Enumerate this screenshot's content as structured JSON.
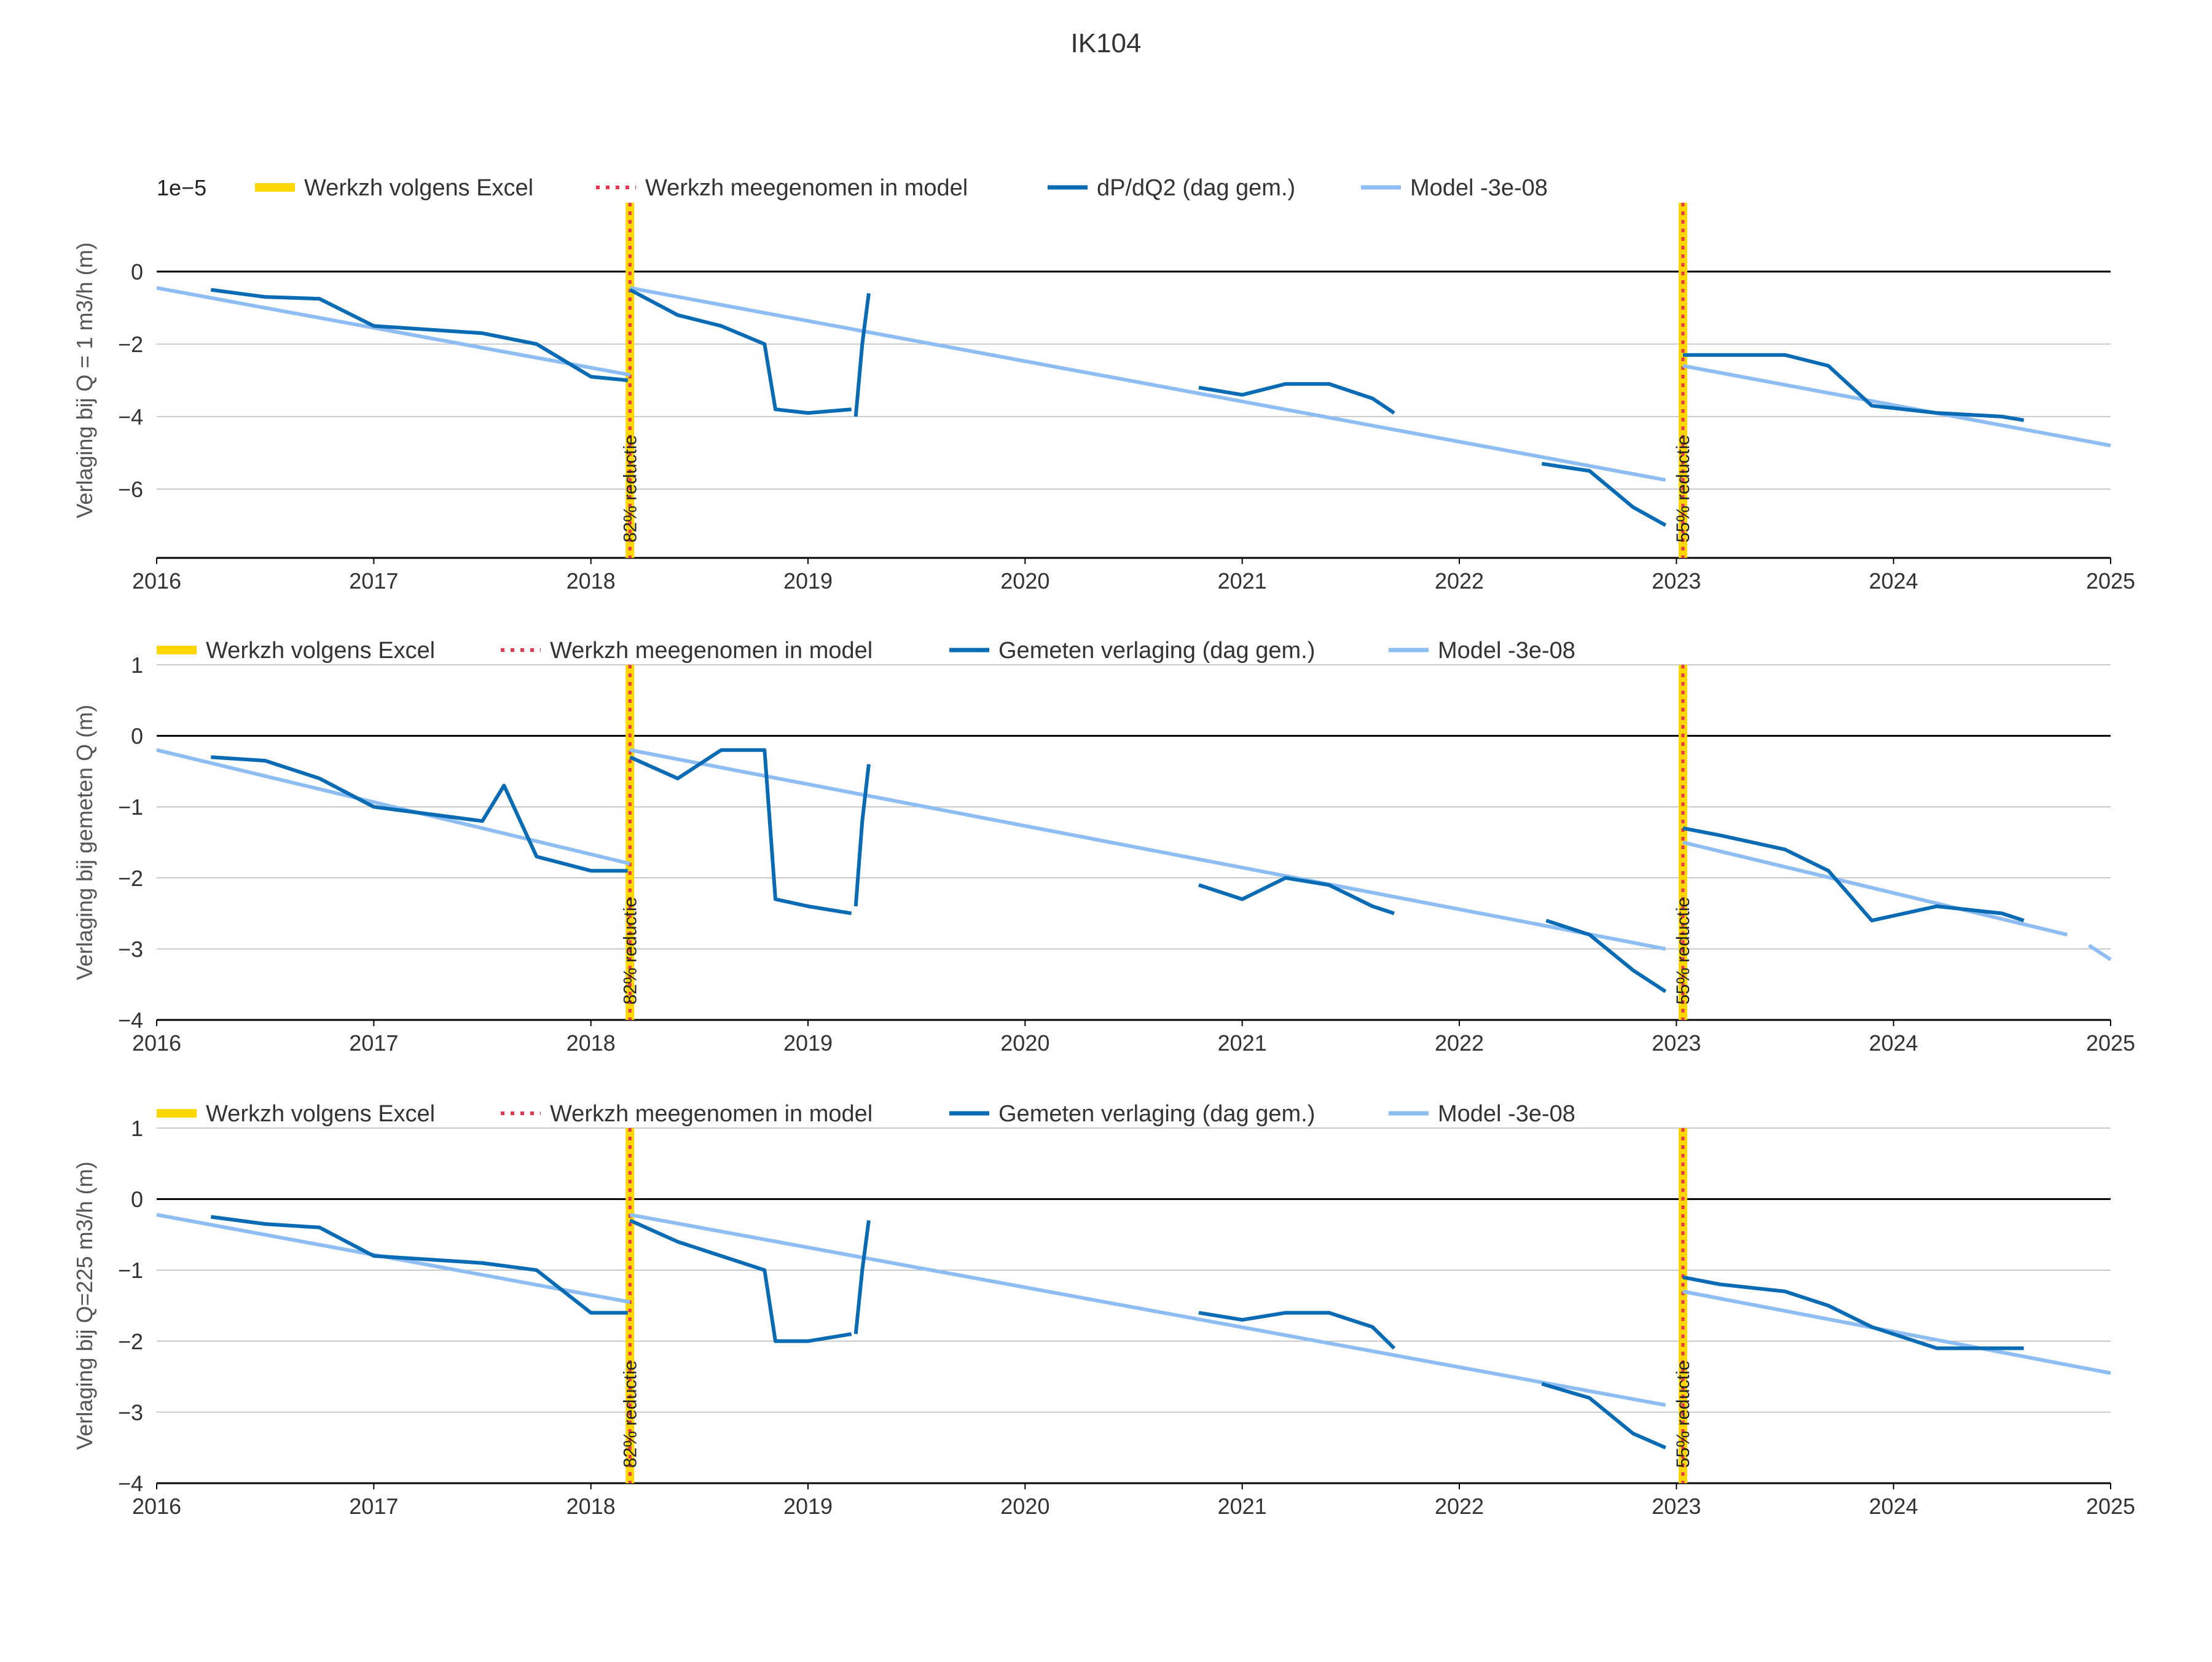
{
  "title": "IK104",
  "colors": {
    "excel": "#FFD700",
    "model_marker": "#E8384F",
    "measured": "#0A6BB5",
    "model": "#8DBDF2",
    "zero_line": "#000000",
    "grid": "#BBBBBB",
    "text": "#333333"
  },
  "chart_data": [
    {
      "type": "line",
      "ylabel": "Verlaging bij Q = 1 m3/h (m)",
      "exponent_label": "1e−5",
      "xlim": [
        2016,
        2025
      ],
      "ylim": [
        -7.9,
        1.9
      ],
      "yticks": [
        0,
        -2,
        -4,
        -6
      ],
      "ytick_labels": [
        "0",
        "−2",
        "−4",
        "−6"
      ],
      "xtick_labels": [
        "2016",
        "2017",
        "2018",
        "2019",
        "2020",
        "2021",
        "2022",
        "2023",
        "2024",
        "2025"
      ],
      "legend": [
        "Werkzh volgens Excel",
        "Werkzh meegenomen in model",
        "dP/dQ2 (dag gem.)",
        "Model -3e-08"
      ],
      "events": [
        {
          "x": 2018.18,
          "label": "82% reductie"
        },
        {
          "x": 2023.03,
          "label": "55% reductie"
        }
      ],
      "model_segments": [
        {
          "x0": 2016.0,
          "y0": -0.45,
          "x1": 2018.18,
          "y1": -2.85
        },
        {
          "x0": 2018.18,
          "y0": -0.45,
          "x1": 2022.95,
          "y1": -5.75
        },
        {
          "x0": 2023.03,
          "y0": -2.6,
          "x1": 2025.0,
          "y1": -4.8
        }
      ],
      "measured_segments": [
        {
          "points": [
            [
              2016.25,
              -0.5
            ],
            [
              2016.5,
              -0.7
            ],
            [
              2016.75,
              -0.75
            ],
            [
              2017.0,
              -1.5
            ],
            [
              2017.5,
              -1.7
            ],
            [
              2017.75,
              -2.0
            ],
            [
              2018.0,
              -2.9
            ],
            [
              2018.17,
              -3.0
            ]
          ]
        },
        {
          "points": [
            [
              2018.18,
              -0.5
            ],
            [
              2018.4,
              -1.2
            ],
            [
              2018.6,
              -1.5
            ],
            [
              2018.8,
              -2.0
            ],
            [
              2018.85,
              -3.8
            ],
            [
              2019.0,
              -3.9
            ],
            [
              2019.2,
              -3.8
            ]
          ]
        },
        {
          "points": [
            [
              2019.22,
              -4.0
            ],
            [
              2019.25,
              -2.0
            ],
            [
              2019.28,
              -0.6
            ]
          ]
        },
        {
          "points": [
            [
              2020.8,
              -3.2
            ],
            [
              2021.0,
              -3.4
            ],
            [
              2021.2,
              -3.1
            ],
            [
              2021.4,
              -3.1
            ],
            [
              2021.6,
              -3.5
            ],
            [
              2021.7,
              -3.9
            ]
          ]
        },
        {
          "points": [
            [
              2022.38,
              -5.3
            ],
            [
              2022.6,
              -5.5
            ],
            [
              2022.8,
              -6.5
            ],
            [
              2022.95,
              -7.0
            ]
          ]
        },
        {
          "points": [
            [
              2023.03,
              -2.3
            ],
            [
              2023.2,
              -2.3
            ],
            [
              2023.5,
              -2.3
            ],
            [
              2023.7,
              -2.6
            ],
            [
              2023.9,
              -3.7
            ],
            [
              2024.2,
              -3.9
            ],
            [
              2024.5,
              -4.0
            ],
            [
              2024.6,
              -4.1
            ]
          ]
        }
      ]
    },
    {
      "type": "line",
      "ylabel": "Verlaging bij gemeten Q (m)",
      "xlim": [
        2016,
        2025
      ],
      "ylim": [
        -4,
        1
      ],
      "yticks": [
        1,
        0,
        -1,
        -2,
        -3,
        -4
      ],
      "ytick_labels": [
        "1",
        "0",
        "−1",
        "−2",
        "−3",
        "−4"
      ],
      "xtick_labels": [
        "2016",
        "2017",
        "2018",
        "2019",
        "2020",
        "2021",
        "2022",
        "2023",
        "2024",
        "2025"
      ],
      "legend": [
        "Werkzh volgens Excel",
        "Werkzh meegenomen in model",
        "Gemeten verlaging (dag gem.)",
        "Model -3e-08"
      ],
      "events": [
        {
          "x": 2018.18,
          "label": "82% reductie"
        },
        {
          "x": 2023.03,
          "label": "55% reductie"
        }
      ],
      "model_segments": [
        {
          "x0": 2016.0,
          "y0": -0.2,
          "x1": 2018.18,
          "y1": -1.8
        },
        {
          "x0": 2018.18,
          "y0": -0.2,
          "x1": 2022.95,
          "y1": -3.0
        },
        {
          "x0": 2023.03,
          "y0": -1.5,
          "x1": 2024.8,
          "y1": -2.8
        },
        {
          "x0": 2024.9,
          "y0": -2.95,
          "x1": 2025.0,
          "y1": -3.15
        }
      ],
      "measured_segments": [
        {
          "points": [
            [
              2016.25,
              -0.3
            ],
            [
              2016.5,
              -0.35
            ],
            [
              2016.75,
              -0.6
            ],
            [
              2017.0,
              -1.0
            ],
            [
              2017.5,
              -1.2
            ],
            [
              2017.6,
              -0.7
            ],
            [
              2017.75,
              -1.7
            ],
            [
              2018.0,
              -1.9
            ],
            [
              2018.17,
              -1.9
            ]
          ]
        },
        {
          "points": [
            [
              2018.18,
              -0.3
            ],
            [
              2018.4,
              -0.6
            ],
            [
              2018.6,
              -0.2
            ],
            [
              2018.8,
              -0.2
            ],
            [
              2018.85,
              -2.3
            ],
            [
              2019.0,
              -2.4
            ],
            [
              2019.2,
              -2.5
            ]
          ]
        },
        {
          "points": [
            [
              2019.22,
              -2.4
            ],
            [
              2019.25,
              -1.2
            ],
            [
              2019.28,
              -0.4
            ]
          ]
        },
        {
          "points": [
            [
              2020.8,
              -2.1
            ],
            [
              2021.0,
              -2.3
            ],
            [
              2021.2,
              -2.0
            ],
            [
              2021.4,
              -2.1
            ],
            [
              2021.6,
              -2.4
            ],
            [
              2021.7,
              -2.5
            ]
          ]
        },
        {
          "points": [
            [
              2022.4,
              -2.6
            ],
            [
              2022.6,
              -2.8
            ],
            [
              2022.8,
              -3.3
            ],
            [
              2022.95,
              -3.6
            ]
          ]
        },
        {
          "points": [
            [
              2023.03,
              -1.3
            ],
            [
              2023.2,
              -1.4
            ],
            [
              2023.5,
              -1.6
            ],
            [
              2023.7,
              -1.9
            ],
            [
              2023.9,
              -2.6
            ],
            [
              2024.2,
              -2.4
            ],
            [
              2024.5,
              -2.5
            ],
            [
              2024.6,
              -2.6
            ]
          ]
        }
      ]
    },
    {
      "type": "line",
      "ylabel": "Verlaging bij Q=225 m3/h (m)",
      "xlim": [
        2016,
        2025
      ],
      "ylim": [
        -4,
        1
      ],
      "yticks": [
        1,
        0,
        -1,
        -2,
        -3,
        -4
      ],
      "ytick_labels": [
        "1",
        "0",
        "−1",
        "−2",
        "−3",
        "−4"
      ],
      "xtick_labels": [
        "2016",
        "2017",
        "2018",
        "2019",
        "2020",
        "2021",
        "2022",
        "2023",
        "2024",
        "2025"
      ],
      "legend": [
        "Werkzh volgens Excel",
        "Werkzh meegenomen in model",
        "Gemeten verlaging (dag gem.)",
        "Model -3e-08"
      ],
      "events": [
        {
          "x": 2018.18,
          "label": "82% reductie"
        },
        {
          "x": 2023.03,
          "label": "55% reductie"
        }
      ],
      "model_segments": [
        {
          "x0": 2016.0,
          "y0": -0.22,
          "x1": 2018.18,
          "y1": -1.45
        },
        {
          "x0": 2018.18,
          "y0": -0.22,
          "x1": 2022.95,
          "y1": -2.9
        },
        {
          "x0": 2023.03,
          "y0": -1.3,
          "x1": 2025.0,
          "y1": -2.45
        }
      ],
      "measured_segments": [
        {
          "points": [
            [
              2016.25,
              -0.25
            ],
            [
              2016.5,
              -0.35
            ],
            [
              2016.75,
              -0.4
            ],
            [
              2017.0,
              -0.8
            ],
            [
              2017.5,
              -0.9
            ],
            [
              2017.75,
              -1.0
            ],
            [
              2018.0,
              -1.6
            ],
            [
              2018.17,
              -1.6
            ]
          ]
        },
        {
          "points": [
            [
              2018.18,
              -0.3
            ],
            [
              2018.4,
              -0.6
            ],
            [
              2018.6,
              -0.8
            ],
            [
              2018.8,
              -1.0
            ],
            [
              2018.85,
              -2.0
            ],
            [
              2019.0,
              -2.0
            ],
            [
              2019.2,
              -1.9
            ]
          ]
        },
        {
          "points": [
            [
              2019.22,
              -1.9
            ],
            [
              2019.25,
              -1.0
            ],
            [
              2019.28,
              -0.3
            ]
          ]
        },
        {
          "points": [
            [
              2020.8,
              -1.6
            ],
            [
              2021.0,
              -1.7
            ],
            [
              2021.2,
              -1.6
            ],
            [
              2021.4,
              -1.6
            ],
            [
              2021.6,
              -1.8
            ],
            [
              2021.7,
              -2.1
            ]
          ]
        },
        {
          "points": [
            [
              2022.38,
              -2.6
            ],
            [
              2022.6,
              -2.8
            ],
            [
              2022.8,
              -3.3
            ],
            [
              2022.95,
              -3.5
            ]
          ]
        },
        {
          "points": [
            [
              2023.03,
              -1.1
            ],
            [
              2023.2,
              -1.2
            ],
            [
              2023.5,
              -1.3
            ],
            [
              2023.7,
              -1.5
            ],
            [
              2023.9,
              -1.8
            ],
            [
              2024.2,
              -2.1
            ],
            [
              2024.5,
              -2.1
            ],
            [
              2024.6,
              -2.1
            ]
          ]
        }
      ]
    }
  ]
}
